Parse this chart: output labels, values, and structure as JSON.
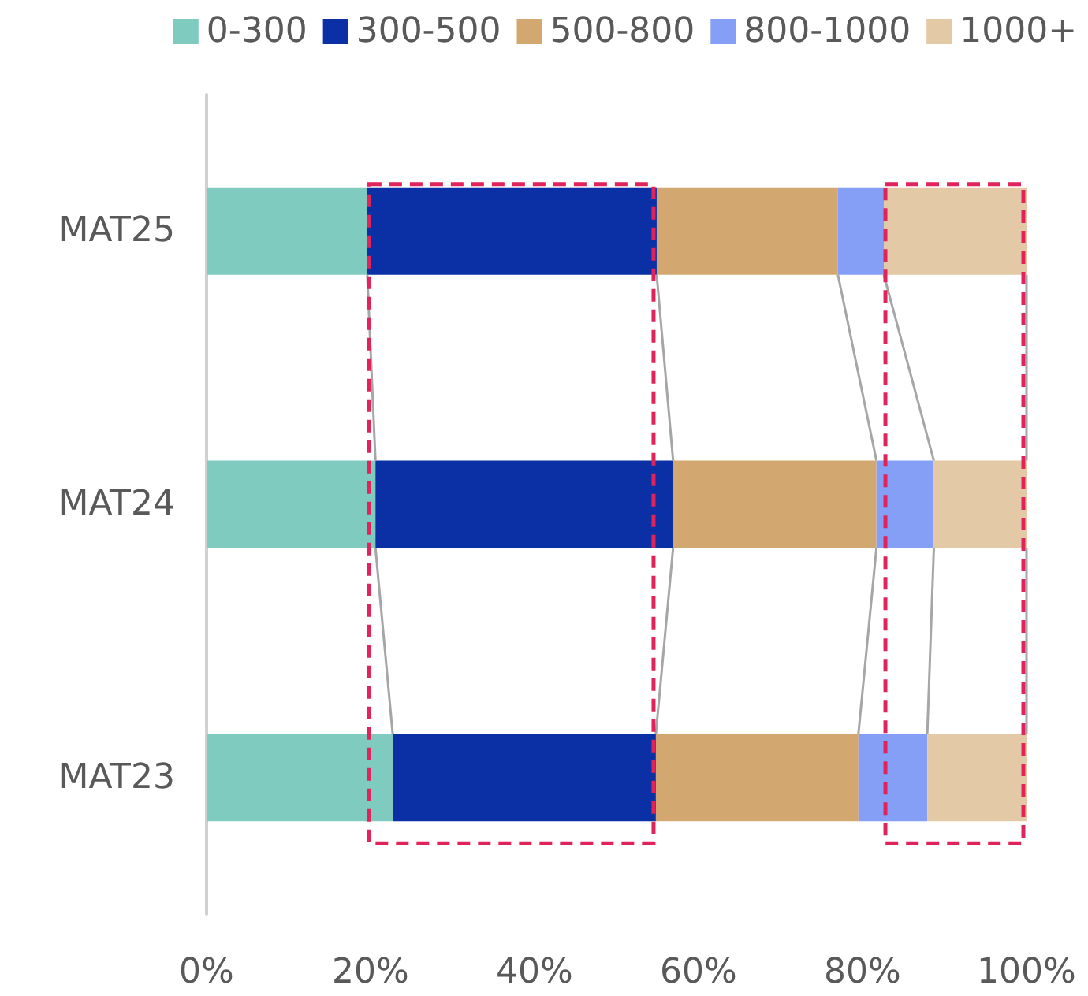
{
  "chart_data": {
    "type": "bar",
    "orientation": "horizontal",
    "stacked": true,
    "categories": [
      "MAT25",
      "MAT24",
      "MAT23"
    ],
    "series": [
      {
        "name": "0-300",
        "color": "#7fcbbf",
        "values": [
          19.6,
          20.6,
          22.7
        ]
      },
      {
        "name": "300-500",
        "color": "#0b2fa5",
        "values": [
          35.3,
          36.3,
          32.1
        ]
      },
      {
        "name": "500-800",
        "color": "#d3a870",
        "values": [
          22.1,
          24.8,
          24.7
        ]
      },
      {
        "name": "800-1000",
        "color": "#859ff7",
        "values": [
          5.6,
          7.0,
          8.4
        ]
      },
      {
        "name": "1000+",
        "color": "#e4c9a7",
        "values": [
          17.4,
          11.3,
          12.1
        ]
      }
    ],
    "xlim": [
      0,
      100
    ],
    "xticks": [
      {
        "value": 0,
        "label": "0%"
      },
      {
        "value": 20,
        "label": "20%"
      },
      {
        "value": 40,
        "label": "40%"
      },
      {
        "value": 60,
        "label": "60%"
      },
      {
        "value": 80,
        "label": "80%"
      },
      {
        "value": 100,
        "label": "100%"
      }
    ],
    "grid": false,
    "legend": "top"
  }
}
